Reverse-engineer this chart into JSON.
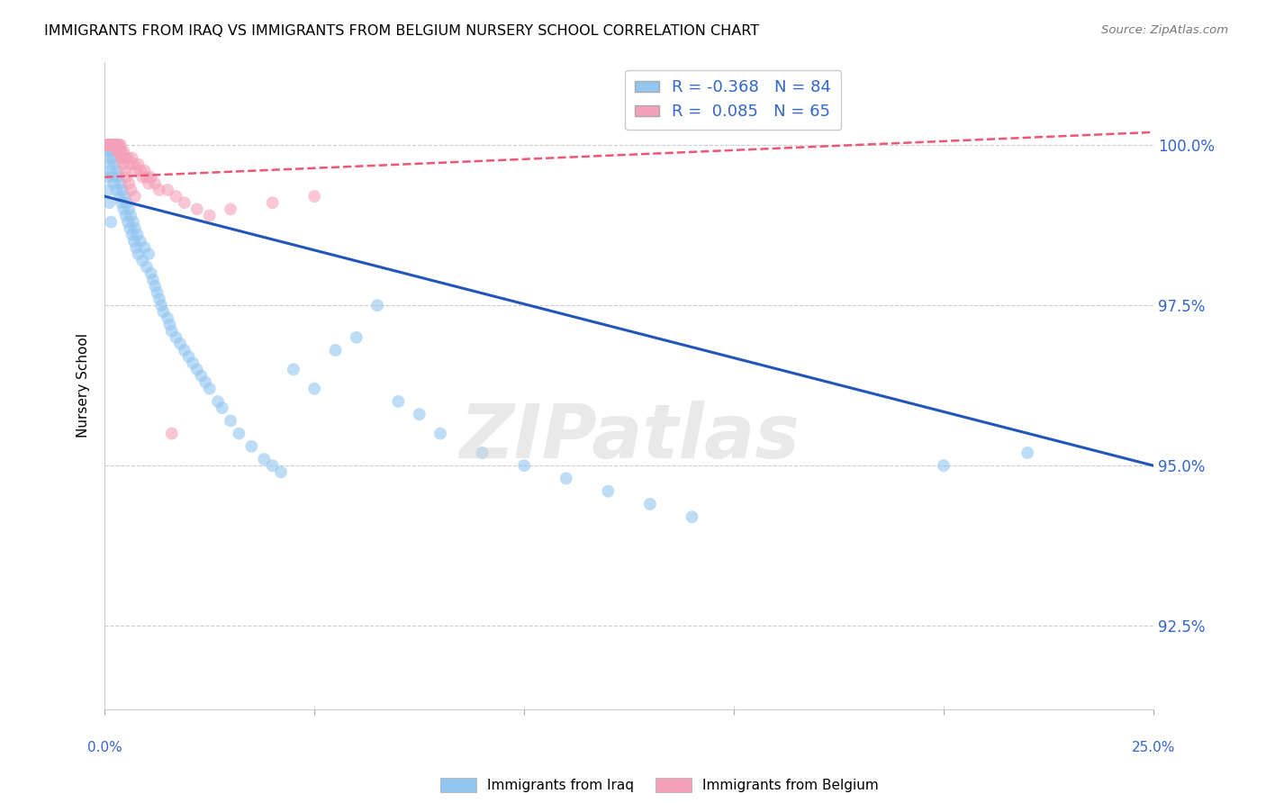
{
  "title": "IMMIGRANTS FROM IRAQ VS IMMIGRANTS FROM BELGIUM NURSERY SCHOOL CORRELATION CHART",
  "source": "Source: ZipAtlas.com",
  "ylabel": "Nursery School",
  "ytick_labels": [
    "92.5%",
    "95.0%",
    "97.5%",
    "100.0%"
  ],
  "ytick_values": [
    92.5,
    95.0,
    97.5,
    100.0
  ],
  "xlim": [
    0.0,
    25.0
  ],
  "ylim": [
    91.2,
    101.3
  ],
  "legend_iraq_R": "-0.368",
  "legend_iraq_N": "84",
  "legend_belgium_R": "0.085",
  "legend_belgium_N": "65",
  "color_iraq": "#92C5F0",
  "color_belgium": "#F4A0B8",
  "color_iraq_line": "#2255BB",
  "color_belgium_line": "#EE5577",
  "watermark": "ZIPatlas",
  "iraq_x": [
    0.05,
    0.08,
    0.1,
    0.12,
    0.14,
    0.16,
    0.18,
    0.2,
    0.22,
    0.25,
    0.28,
    0.3,
    0.32,
    0.35,
    0.38,
    0.4,
    0.42,
    0.45,
    0.48,
    0.5,
    0.52,
    0.55,
    0.58,
    0.6,
    0.62,
    0.65,
    0.68,
    0.7,
    0.72,
    0.75,
    0.78,
    0.8,
    0.85,
    0.9,
    0.95,
    1.0,
    1.05,
    1.1,
    1.15,
    1.2,
    1.25,
    1.3,
    1.35,
    1.4,
    1.5,
    1.55,
    1.6,
    1.7,
    1.8,
    1.9,
    2.0,
    2.1,
    2.2,
    2.3,
    2.4,
    2.5,
    2.7,
    2.8,
    3.0,
    3.2,
    3.5,
    3.8,
    4.0,
    4.2,
    4.5,
    5.0,
    5.5,
    6.0,
    6.5,
    7.0,
    7.5,
    8.0,
    9.0,
    10.0,
    11.0,
    12.0,
    13.0,
    14.0,
    20.0,
    22.0,
    0.06,
    0.09,
    0.11,
    0.15
  ],
  "iraq_y": [
    99.9,
    100.0,
    99.8,
    99.7,
    99.6,
    99.9,
    99.5,
    99.8,
    99.4,
    99.7,
    99.3,
    99.6,
    99.5,
    99.2,
    99.4,
    99.1,
    99.3,
    99.0,
    99.2,
    98.9,
    99.1,
    98.8,
    99.0,
    98.7,
    98.9,
    98.6,
    98.8,
    98.5,
    98.7,
    98.4,
    98.6,
    98.3,
    98.5,
    98.2,
    98.4,
    98.1,
    98.3,
    98.0,
    97.9,
    97.8,
    97.7,
    97.6,
    97.5,
    97.4,
    97.3,
    97.2,
    97.1,
    97.0,
    96.9,
    96.8,
    96.7,
    96.6,
    96.5,
    96.4,
    96.3,
    96.2,
    96.0,
    95.9,
    95.7,
    95.5,
    95.3,
    95.1,
    95.0,
    94.9,
    96.5,
    96.2,
    96.8,
    97.0,
    97.5,
    96.0,
    95.8,
    95.5,
    95.2,
    95.0,
    94.8,
    94.6,
    94.4,
    94.2,
    95.0,
    95.2,
    99.5,
    99.3,
    99.1,
    98.8
  ],
  "belgium_x": [
    0.04,
    0.06,
    0.08,
    0.1,
    0.12,
    0.14,
    0.16,
    0.18,
    0.2,
    0.22,
    0.25,
    0.28,
    0.3,
    0.32,
    0.35,
    0.38,
    0.4,
    0.42,
    0.45,
    0.5,
    0.55,
    0.6,
    0.65,
    0.7,
    0.75,
    0.8,
    0.85,
    0.9,
    0.95,
    1.0,
    1.05,
    1.1,
    1.2,
    1.3,
    1.5,
    1.7,
    1.9,
    2.2,
    2.5,
    3.0,
    4.0,
    5.0,
    0.07,
    0.09,
    0.11,
    0.13,
    0.15,
    0.17,
    0.19,
    0.21,
    0.24,
    0.27,
    0.29,
    0.31,
    0.34,
    0.37,
    0.39,
    0.41,
    0.44,
    0.48,
    0.52,
    0.58,
    0.63,
    0.72,
    1.6
  ],
  "belgium_y": [
    100.0,
    100.0,
    100.0,
    100.0,
    100.0,
    100.0,
    100.0,
    100.0,
    100.0,
    100.0,
    100.0,
    100.0,
    100.0,
    99.9,
    100.0,
    100.0,
    99.9,
    99.8,
    99.9,
    99.8,
    99.8,
    99.7,
    99.8,
    99.7,
    99.6,
    99.7,
    99.6,
    99.5,
    99.6,
    99.5,
    99.4,
    99.5,
    99.4,
    99.3,
    99.3,
    99.2,
    99.1,
    99.0,
    98.9,
    99.0,
    99.1,
    99.2,
    100.0,
    100.0,
    100.0,
    100.0,
    100.0,
    100.0,
    100.0,
    100.0,
    100.0,
    100.0,
    100.0,
    99.9,
    99.9,
    99.9,
    99.8,
    99.8,
    99.7,
    99.6,
    99.5,
    99.4,
    99.3,
    99.2,
    95.5
  ],
  "iraq_line_x": [
    0.0,
    25.0
  ],
  "iraq_line_y": [
    99.2,
    95.0
  ],
  "belgium_line_x": [
    0.0,
    25.0
  ],
  "belgium_line_y": [
    99.5,
    100.2
  ]
}
